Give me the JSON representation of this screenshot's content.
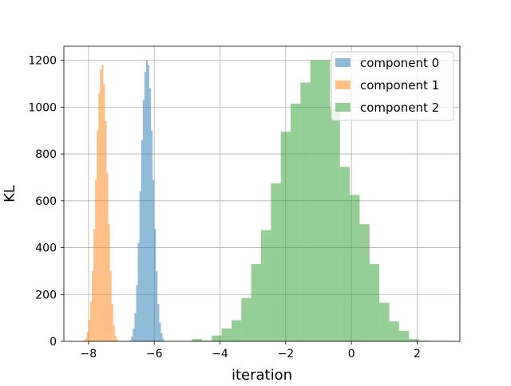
{
  "chart_data": {
    "type": "histogram",
    "title": "",
    "xlabel": "iteration",
    "ylabel": "KL",
    "xlim": [
      -8.75,
      3.3
    ],
    "ylim": [
      0,
      1260
    ],
    "xticks": [
      -8,
      -6,
      -4,
      -2,
      0,
      2
    ],
    "xtick_labels": [
      "−8",
      "−6",
      "−4",
      "−2",
      "0",
      "2"
    ],
    "yticks": [
      0,
      200,
      400,
      600,
      800,
      1000,
      1200
    ],
    "ytick_labels": [
      "0",
      "200",
      "400",
      "600",
      "800",
      "1000",
      "1200"
    ],
    "grid": true,
    "legend_position": "upper right",
    "series": [
      {
        "name": "component 0",
        "color": "#1f77b4",
        "alpha": 0.5,
        "bins": [
          {
            "x0": -6.75,
            "x1": -6.7,
            "y": 5
          },
          {
            "x0": -6.7,
            "x1": -6.65,
            "y": 20
          },
          {
            "x0": -6.65,
            "x1": -6.6,
            "y": 55
          },
          {
            "x0": -6.6,
            "x1": -6.55,
            "y": 120
          },
          {
            "x0": -6.55,
            "x1": -6.5,
            "y": 240
          },
          {
            "x0": -6.5,
            "x1": -6.45,
            "y": 420
          },
          {
            "x0": -6.45,
            "x1": -6.4,
            "y": 640
          },
          {
            "x0": -6.4,
            "x1": -6.35,
            "y": 860
          },
          {
            "x0": -6.35,
            "x1": -6.3,
            "y": 1030
          },
          {
            "x0": -6.3,
            "x1": -6.25,
            "y": 1150
          },
          {
            "x0": -6.25,
            "x1": -6.2,
            "y": 1200
          },
          {
            "x0": -6.2,
            "x1": -6.15,
            "y": 1180
          },
          {
            "x0": -6.15,
            "x1": -6.1,
            "y": 1080
          },
          {
            "x0": -6.1,
            "x1": -6.05,
            "y": 900
          },
          {
            "x0": -6.05,
            "x1": -6.0,
            "y": 690
          },
          {
            "x0": -6.0,
            "x1": -5.95,
            "y": 480
          },
          {
            "x0": -5.95,
            "x1": -5.9,
            "y": 300
          },
          {
            "x0": -5.9,
            "x1": -5.85,
            "y": 160
          },
          {
            "x0": -5.85,
            "x1": -5.8,
            "y": 80
          },
          {
            "x0": -5.8,
            "x1": -5.75,
            "y": 35
          },
          {
            "x0": -5.75,
            "x1": -5.7,
            "y": 12
          }
        ]
      },
      {
        "name": "component 1",
        "color": "#ff7f0e",
        "alpha": 0.5,
        "bins": [
          {
            "x0": -8.15,
            "x1": -8.1,
            "y": 5
          },
          {
            "x0": -8.1,
            "x1": -8.05,
            "y": 15
          },
          {
            "x0": -8.05,
            "x1": -8.0,
            "y": 40
          },
          {
            "x0": -8.0,
            "x1": -7.95,
            "y": 90
          },
          {
            "x0": -7.95,
            "x1": -7.9,
            "y": 170
          },
          {
            "x0": -7.9,
            "x1": -7.85,
            "y": 300
          },
          {
            "x0": -7.85,
            "x1": -7.8,
            "y": 480
          },
          {
            "x0": -7.8,
            "x1": -7.75,
            "y": 690
          },
          {
            "x0": -7.75,
            "x1": -7.7,
            "y": 900
          },
          {
            "x0": -7.7,
            "x1": -7.65,
            "y": 1060
          },
          {
            "x0": -7.65,
            "x1": -7.6,
            "y": 1160
          },
          {
            "x0": -7.6,
            "x1": -7.55,
            "y": 1180
          },
          {
            "x0": -7.55,
            "x1": -7.5,
            "y": 1100
          },
          {
            "x0": -7.5,
            "x1": -7.45,
            "y": 940
          },
          {
            "x0": -7.45,
            "x1": -7.4,
            "y": 720
          },
          {
            "x0": -7.4,
            "x1": -7.35,
            "y": 500
          },
          {
            "x0": -7.35,
            "x1": -7.3,
            "y": 300
          },
          {
            "x0": -7.3,
            "x1": -7.25,
            "y": 160
          },
          {
            "x0": -7.25,
            "x1": -7.2,
            "y": 70
          },
          {
            "x0": -7.2,
            "x1": -7.15,
            "y": 25
          },
          {
            "x0": -7.15,
            "x1": -7.1,
            "y": 8
          }
        ]
      },
      {
        "name": "component 2",
        "color": "#2ca02c",
        "alpha": 0.5,
        "bins": [
          {
            "x0": -4.85,
            "x1": -4.55,
            "y": 10
          },
          {
            "x0": -4.55,
            "x1": -4.25,
            "y": 3
          },
          {
            "x0": -4.25,
            "x1": -3.95,
            "y": 25
          },
          {
            "x0": -3.95,
            "x1": -3.65,
            "y": 55
          },
          {
            "x0": -3.65,
            "x1": -3.35,
            "y": 90
          },
          {
            "x0": -3.35,
            "x1": -3.05,
            "y": 185
          },
          {
            "x0": -3.05,
            "x1": -2.75,
            "y": 330
          },
          {
            "x0": -2.75,
            "x1": -2.45,
            "y": 475
          },
          {
            "x0": -2.45,
            "x1": -2.15,
            "y": 675
          },
          {
            "x0": -2.15,
            "x1": -1.85,
            "y": 895
          },
          {
            "x0": -1.85,
            "x1": -1.55,
            "y": 1015
          },
          {
            "x0": -1.55,
            "x1": -1.25,
            "y": 1105
          },
          {
            "x0": -1.25,
            "x1": -0.95,
            "y": 1200
          },
          {
            "x0": -0.95,
            "x1": -0.65,
            "y": 1200
          },
          {
            "x0": -0.65,
            "x1": -0.35,
            "y": 995
          },
          {
            "x0": -0.35,
            "x1": -0.05,
            "y": 745
          },
          {
            "x0": -0.05,
            "x1": 0.25,
            "y": 625
          },
          {
            "x0": 0.25,
            "x1": 0.55,
            "y": 500
          },
          {
            "x0": 0.55,
            "x1": 0.85,
            "y": 330
          },
          {
            "x0": 0.85,
            "x1": 1.15,
            "y": 165
          },
          {
            "x0": 1.15,
            "x1": 1.45,
            "y": 85
          },
          {
            "x0": 1.45,
            "x1": 1.75,
            "y": 45
          },
          {
            "x0": 1.75,
            "x1": 2.05,
            "y": 10
          },
          {
            "x0": 2.05,
            "x1": 2.35,
            "y": 3
          }
        ]
      }
    ]
  }
}
